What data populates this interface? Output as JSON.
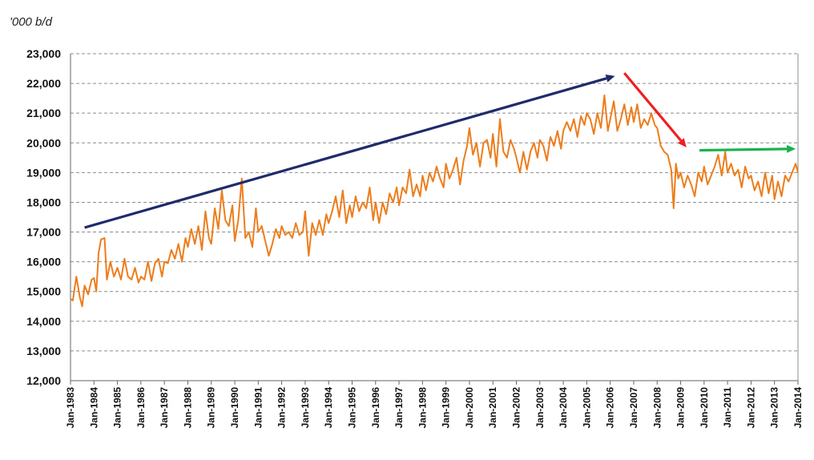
{
  "chart_data": {
    "type": "line",
    "title": "",
    "ylabel": "'000 b/d",
    "xlabel": "",
    "ylim": [
      12000,
      23000
    ],
    "yticks": [
      "12,000",
      "13,000",
      "14,000",
      "15,000",
      "16,000",
      "17,000",
      "18,000",
      "19,000",
      "20,000",
      "21,000",
      "22,000",
      "23,000"
    ],
    "xlim": [
      1983,
      2014
    ],
    "xticks": [
      "Jan-1983",
      "Jan-1984",
      "Jan-1985",
      "Jan-1986",
      "Jan-1987",
      "Jan-1988",
      "Jan-1989",
      "Jan-1990",
      "Jan-1991",
      "Jan-1992",
      "Jan-1993",
      "Jan-1994",
      "Jan-1995",
      "Jan-1996",
      "Jan-1997",
      "Jan-1998",
      "Jan-1999",
      "Jan-2000",
      "Jan-2001",
      "Jan-2002",
      "Jan-2003",
      "Jan-2004",
      "Jan-2005",
      "Jan-2006",
      "Jan-2007",
      "Jan-2008",
      "Jan-2009",
      "Jan-2010",
      "Jan-2011",
      "Jan-2012",
      "Jan-2013",
      "Jan-2014"
    ],
    "grid": true,
    "colors": {
      "series": "#ED7D1B",
      "up_arrow": "#1F2A6B",
      "down_arrow": "#F01F1F",
      "flat_arrow": "#19B24B"
    },
    "series_points": [
      [
        1983.0,
        14750
      ],
      [
        1983.1,
        14700
      ],
      [
        1983.25,
        15500
      ],
      [
        1983.4,
        14800
      ],
      [
        1983.5,
        14500
      ],
      [
        1983.6,
        15200
      ],
      [
        1983.75,
        14900
      ],
      [
        1983.9,
        15400
      ],
      [
        1984.0,
        15450
      ],
      [
        1984.1,
        15000
      ],
      [
        1984.2,
        16300
      ],
      [
        1984.3,
        16750
      ],
      [
        1984.45,
        16800
      ],
      [
        1984.55,
        15400
      ],
      [
        1984.7,
        16000
      ],
      [
        1984.85,
        15500
      ],
      [
        1985.0,
        15800
      ],
      [
        1985.15,
        15400
      ],
      [
        1985.3,
        16100
      ],
      [
        1985.45,
        15500
      ],
      [
        1985.6,
        15400
      ],
      [
        1985.75,
        15800
      ],
      [
        1985.9,
        15300
      ],
      [
        1986.0,
        15500
      ],
      [
        1986.15,
        15400
      ],
      [
        1986.3,
        16000
      ],
      [
        1986.45,
        15350
      ],
      [
        1986.6,
        15950
      ],
      [
        1986.75,
        16100
      ],
      [
        1986.9,
        15500
      ],
      [
        1987.0,
        16000
      ],
      [
        1987.15,
        15950
      ],
      [
        1987.3,
        16400
      ],
      [
        1987.45,
        16100
      ],
      [
        1987.6,
        16600
      ],
      [
        1987.75,
        16000
      ],
      [
        1987.9,
        16800
      ],
      [
        1988.0,
        16500
      ],
      [
        1988.15,
        17100
      ],
      [
        1988.3,
        16600
      ],
      [
        1988.45,
        17200
      ],
      [
        1988.6,
        16400
      ],
      [
        1988.75,
        17700
      ],
      [
        1988.9,
        16800
      ],
      [
        1989.0,
        16600
      ],
      [
        1989.15,
        17800
      ],
      [
        1989.3,
        17100
      ],
      [
        1989.45,
        18400
      ],
      [
        1989.6,
        17400
      ],
      [
        1989.75,
        17200
      ],
      [
        1989.9,
        17900
      ],
      [
        1990.0,
        16700
      ],
      [
        1990.15,
        17400
      ],
      [
        1990.3,
        18800
      ],
      [
        1990.45,
        16800
      ],
      [
        1990.6,
        17000
      ],
      [
        1990.75,
        16500
      ],
      [
        1990.9,
        17800
      ],
      [
        1991.0,
        17000
      ],
      [
        1991.15,
        17200
      ],
      [
        1991.3,
        16700
      ],
      [
        1991.45,
        16200
      ],
      [
        1991.6,
        16600
      ],
      [
        1991.75,
        17100
      ],
      [
        1991.9,
        16800
      ],
      [
        1992.0,
        17200
      ],
      [
        1992.15,
        16900
      ],
      [
        1992.3,
        17000
      ],
      [
        1992.45,
        16800
      ],
      [
        1992.6,
        17300
      ],
      [
        1992.75,
        16900
      ],
      [
        1992.9,
        17000
      ],
      [
        1993.0,
        17700
      ],
      [
        1993.15,
        16200
      ],
      [
        1993.3,
        17300
      ],
      [
        1993.45,
        16900
      ],
      [
        1993.6,
        17400
      ],
      [
        1993.75,
        16900
      ],
      [
        1993.9,
        17600
      ],
      [
        1994.0,
        17300
      ],
      [
        1994.15,
        17700
      ],
      [
        1994.3,
        18200
      ],
      [
        1994.45,
        17500
      ],
      [
        1994.6,
        18400
      ],
      [
        1994.75,
        17300
      ],
      [
        1994.9,
        17900
      ],
      [
        1995.0,
        17500
      ],
      [
        1995.15,
        18200
      ],
      [
        1995.3,
        17700
      ],
      [
        1995.45,
        18000
      ],
      [
        1995.6,
        17800
      ],
      [
        1995.75,
        18500
      ],
      [
        1995.9,
        17400
      ],
      [
        1996.0,
        18000
      ],
      [
        1996.15,
        17300
      ],
      [
        1996.3,
        18000
      ],
      [
        1996.45,
        17600
      ],
      [
        1996.6,
        18300
      ],
      [
        1996.75,
        18000
      ],
      [
        1996.9,
        18500
      ],
      [
        1997.0,
        17900
      ],
      [
        1997.15,
        18500
      ],
      [
        1997.3,
        18300
      ],
      [
        1997.45,
        19100
      ],
      [
        1997.6,
        18200
      ],
      [
        1997.75,
        18600
      ],
      [
        1997.9,
        18200
      ],
      [
        1998.0,
        18900
      ],
      [
        1998.15,
        18400
      ],
      [
        1998.3,
        19000
      ],
      [
        1998.45,
        18700
      ],
      [
        1998.6,
        19200
      ],
      [
        1998.75,
        18800
      ],
      [
        1998.9,
        18500
      ],
      [
        1999.0,
        19300
      ],
      [
        1999.15,
        18800
      ],
      [
        1999.3,
        19100
      ],
      [
        1999.45,
        19500
      ],
      [
        1999.6,
        18600
      ],
      [
        1999.75,
        19400
      ],
      [
        1999.9,
        19900
      ],
      [
        2000.0,
        20500
      ],
      [
        2000.15,
        19600
      ],
      [
        2000.3,
        20000
      ],
      [
        2000.45,
        19200
      ],
      [
        2000.6,
        20000
      ],
      [
        2000.75,
        20100
      ],
      [
        2000.9,
        19500
      ],
      [
        2001.0,
        20300
      ],
      [
        2001.15,
        19200
      ],
      [
        2001.3,
        20800
      ],
      [
        2001.45,
        19700
      ],
      [
        2001.6,
        19500
      ],
      [
        2001.75,
        20100
      ],
      [
        2001.9,
        19800
      ],
      [
        2002.0,
        19500
      ],
      [
        2002.15,
        19000
      ],
      [
        2002.3,
        19700
      ],
      [
        2002.45,
        19100
      ],
      [
        2002.6,
        19700
      ],
      [
        2002.75,
        20000
      ],
      [
        2002.9,
        19500
      ],
      [
        2003.0,
        20100
      ],
      [
        2003.15,
        19900
      ],
      [
        2003.3,
        19400
      ],
      [
        2003.45,
        20200
      ],
      [
        2003.6,
        19900
      ],
      [
        2003.75,
        20400
      ],
      [
        2003.9,
        19800
      ],
      [
        2004.0,
        20400
      ],
      [
        2004.15,
        20700
      ],
      [
        2004.3,
        20400
      ],
      [
        2004.45,
        20800
      ],
      [
        2004.6,
        20200
      ],
      [
        2004.75,
        20900
      ],
      [
        2004.9,
        20600
      ],
      [
        2005.0,
        21000
      ],
      [
        2005.15,
        20800
      ],
      [
        2005.3,
        20300
      ],
      [
        2005.45,
        21000
      ],
      [
        2005.6,
        20500
      ],
      [
        2005.75,
        21600
      ],
      [
        2005.9,
        20400
      ],
      [
        2006.0,
        20800
      ],
      [
        2006.15,
        21400
      ],
      [
        2006.3,
        20400
      ],
      [
        2006.45,
        20800
      ],
      [
        2006.6,
        21300
      ],
      [
        2006.75,
        20600
      ],
      [
        2006.9,
        21200
      ],
      [
        2007.0,
        20700
      ],
      [
        2007.15,
        21300
      ],
      [
        2007.3,
        20500
      ],
      [
        2007.45,
        20800
      ],
      [
        2007.6,
        20600
      ],
      [
        2007.75,
        21000
      ],
      [
        2007.9,
        20600
      ],
      [
        2008.0,
        20500
      ],
      [
        2008.15,
        19900
      ],
      [
        2008.3,
        19700
      ],
      [
        2008.45,
        19600
      ],
      [
        2008.6,
        19100
      ],
      [
        2008.7,
        17800
      ],
      [
        2008.8,
        19300
      ],
      [
        2008.9,
        18800
      ],
      [
        2009.0,
        19000
      ],
      [
        2009.15,
        18500
      ],
      [
        2009.3,
        18900
      ],
      [
        2009.45,
        18600
      ],
      [
        2009.6,
        18200
      ],
      [
        2009.75,
        19000
      ],
      [
        2009.9,
        18700
      ],
      [
        2010.0,
        19200
      ],
      [
        2010.15,
        18600
      ],
      [
        2010.3,
        18900
      ],
      [
        2010.45,
        19200
      ],
      [
        2010.6,
        19600
      ],
      [
        2010.75,
        18900
      ],
      [
        2010.9,
        19700
      ],
      [
        2011.0,
        19000
      ],
      [
        2011.15,
        19300
      ],
      [
        2011.3,
        18900
      ],
      [
        2011.45,
        19100
      ],
      [
        2011.6,
        18500
      ],
      [
        2011.75,
        19200
      ],
      [
        2011.9,
        18800
      ],
      [
        2012.0,
        18900
      ],
      [
        2012.15,
        18400
      ],
      [
        2012.3,
        18700
      ],
      [
        2012.45,
        18200
      ],
      [
        2012.6,
        19000
      ],
      [
        2012.75,
        18300
      ],
      [
        2012.9,
        18900
      ],
      [
        2013.0,
        18100
      ],
      [
        2013.15,
        18700
      ],
      [
        2013.3,
        18200
      ],
      [
        2013.45,
        18900
      ],
      [
        2013.6,
        18700
      ],
      [
        2013.75,
        19000
      ],
      [
        2013.9,
        19300
      ],
      [
        2014.0,
        19000
      ]
    ],
    "annotations": [
      {
        "kind": "arrow",
        "color_key": "up_arrow",
        "from": [
          1983.6,
          17150
        ],
        "to": [
          2006.2,
          22250
        ]
      },
      {
        "kind": "arrow",
        "color_key": "down_arrow",
        "from": [
          2006.6,
          22350
        ],
        "to": [
          2009.25,
          19850
        ]
      },
      {
        "kind": "arrow",
        "color_key": "flat_arrow",
        "from": [
          2009.8,
          19750
        ],
        "to": [
          2013.9,
          19800
        ]
      }
    ]
  }
}
